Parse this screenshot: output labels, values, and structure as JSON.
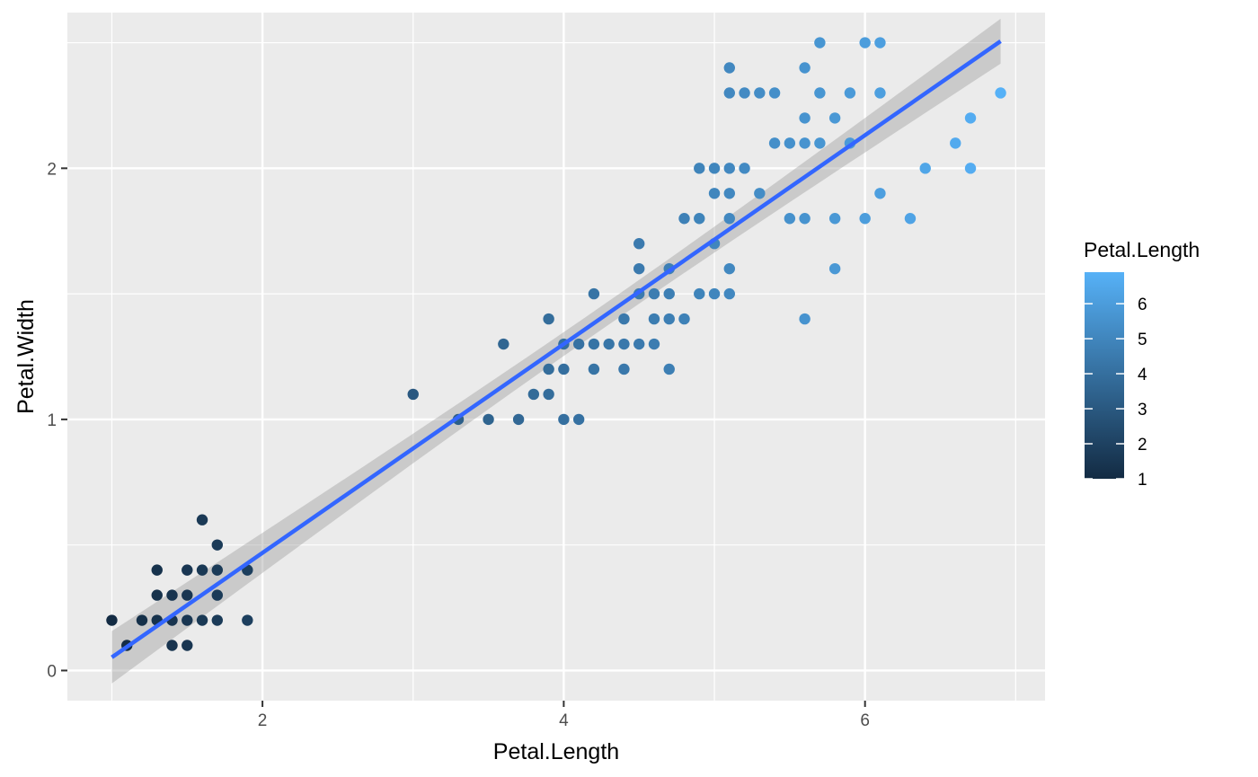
{
  "chart_data": {
    "type": "scatter",
    "xlabel": "Petal.Length",
    "ylabel": "Petal.Width",
    "xlim": [
      0.705,
      7.195
    ],
    "ylim": [
      -0.12,
      2.62
    ],
    "x_ticks": [
      2,
      4,
      6
    ],
    "y_ticks": [
      0,
      1,
      2
    ],
    "x_tick_labels": [
      "2",
      "4",
      "6"
    ],
    "y_tick_labels": [
      "0",
      "1",
      "2"
    ],
    "grid": true,
    "color_variable": "Petal.Length",
    "color_scale": {
      "low": "#132B43",
      "high": "#56B1F7",
      "min": 1.0,
      "max": 6.9
    },
    "legend": {
      "title": "Petal.Length",
      "placement": "right",
      "breaks": [
        1,
        2,
        3,
        4,
        5,
        6
      ],
      "labels": [
        "1",
        "2",
        "3",
        "4",
        "5",
        "6"
      ]
    },
    "smooth": {
      "method": "lm",
      "intercept": -0.3631,
      "slope": 0.4158,
      "x_range": [
        1.0,
        6.9
      ],
      "color": "#3366FF",
      "se_color": "#999999"
    },
    "points": [
      [
        1.0,
        0.2
      ],
      [
        1.1,
        0.1
      ],
      [
        1.2,
        0.2
      ],
      [
        1.3,
        0.2
      ],
      [
        1.3,
        0.3
      ],
      [
        1.3,
        0.4
      ],
      [
        1.4,
        0.1
      ],
      [
        1.4,
        0.2
      ],
      [
        1.4,
        0.3
      ],
      [
        1.5,
        0.1
      ],
      [
        1.5,
        0.2
      ],
      [
        1.5,
        0.3
      ],
      [
        1.5,
        0.4
      ],
      [
        1.6,
        0.2
      ],
      [
        1.6,
        0.4
      ],
      [
        1.6,
        0.6
      ],
      [
        1.7,
        0.2
      ],
      [
        1.7,
        0.3
      ],
      [
        1.7,
        0.4
      ],
      [
        1.7,
        0.5
      ],
      [
        1.9,
        0.2
      ],
      [
        1.9,
        0.4
      ],
      [
        3.0,
        1.1
      ],
      [
        3.3,
        1.0
      ],
      [
        3.5,
        1.0
      ],
      [
        3.6,
        1.3
      ],
      [
        3.7,
        1.0
      ],
      [
        3.8,
        1.1
      ],
      [
        3.9,
        1.1
      ],
      [
        3.9,
        1.2
      ],
      [
        3.9,
        1.4
      ],
      [
        4.0,
        1.0
      ],
      [
        4.0,
        1.2
      ],
      [
        4.0,
        1.3
      ],
      [
        4.1,
        1.0
      ],
      [
        4.1,
        1.3
      ],
      [
        4.2,
        1.2
      ],
      [
        4.2,
        1.3
      ],
      [
        4.2,
        1.5
      ],
      [
        4.3,
        1.3
      ],
      [
        4.4,
        1.2
      ],
      [
        4.4,
        1.3
      ],
      [
        4.4,
        1.4
      ],
      [
        4.5,
        1.3
      ],
      [
        4.5,
        1.5
      ],
      [
        4.5,
        1.6
      ],
      [
        4.5,
        1.7
      ],
      [
        4.6,
        1.3
      ],
      [
        4.6,
        1.4
      ],
      [
        4.6,
        1.5
      ],
      [
        4.7,
        1.2
      ],
      [
        4.7,
        1.4
      ],
      [
        4.7,
        1.5
      ],
      [
        4.7,
        1.6
      ],
      [
        4.8,
        1.4
      ],
      [
        4.8,
        1.8
      ],
      [
        4.9,
        1.5
      ],
      [
        4.9,
        1.8
      ],
      [
        4.9,
        2.0
      ],
      [
        5.0,
        1.5
      ],
      [
        5.0,
        1.7
      ],
      [
        5.0,
        1.9
      ],
      [
        5.0,
        2.0
      ],
      [
        5.1,
        1.5
      ],
      [
        5.1,
        1.6
      ],
      [
        5.1,
        1.8
      ],
      [
        5.1,
        1.9
      ],
      [
        5.1,
        2.0
      ],
      [
        5.1,
        2.3
      ],
      [
        5.1,
        2.4
      ],
      [
        5.2,
        2.0
      ],
      [
        5.2,
        2.3
      ],
      [
        5.3,
        1.9
      ],
      [
        5.3,
        2.3
      ],
      [
        5.4,
        2.1
      ],
      [
        5.4,
        2.3
      ],
      [
        5.5,
        1.8
      ],
      [
        5.5,
        2.1
      ],
      [
        5.6,
        1.4
      ],
      [
        5.6,
        1.8
      ],
      [
        5.6,
        2.1
      ],
      [
        5.6,
        2.2
      ],
      [
        5.6,
        2.4
      ],
      [
        5.7,
        2.1
      ],
      [
        5.7,
        2.3
      ],
      [
        5.7,
        2.5
      ],
      [
        5.8,
        1.6
      ],
      [
        5.8,
        1.8
      ],
      [
        5.8,
        2.2
      ],
      [
        5.9,
        2.1
      ],
      [
        5.9,
        2.3
      ],
      [
        6.0,
        1.8
      ],
      [
        6.0,
        2.5
      ],
      [
        6.1,
        1.9
      ],
      [
        6.1,
        2.3
      ],
      [
        6.1,
        2.5
      ],
      [
        6.3,
        1.8
      ],
      [
        6.4,
        2.0
      ],
      [
        6.6,
        2.1
      ],
      [
        6.7,
        2.0
      ],
      [
        6.7,
        2.2
      ],
      [
        6.9,
        2.3
      ]
    ]
  }
}
